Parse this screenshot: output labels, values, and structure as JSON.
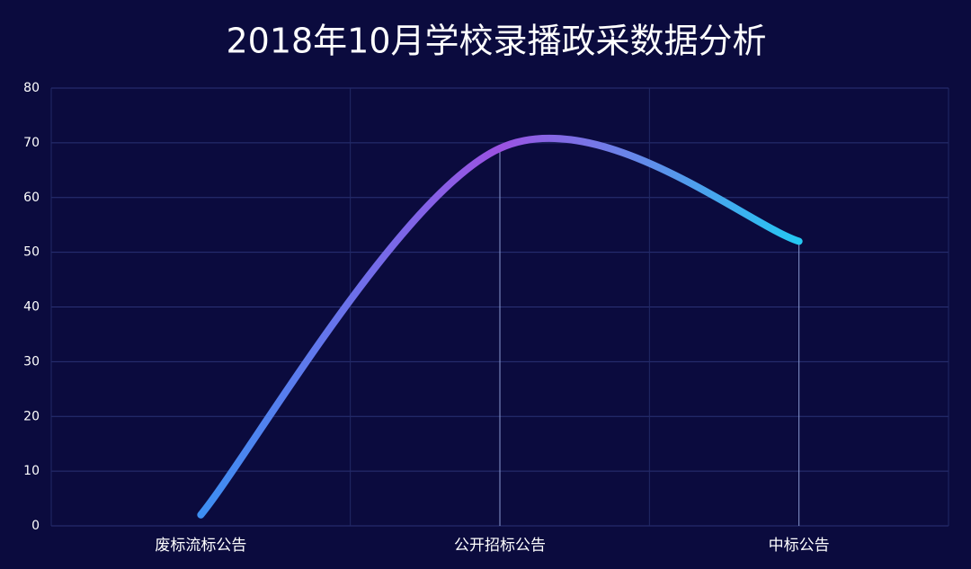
{
  "chart_data": {
    "type": "line",
    "title": "2018年10月学校录播政采数据分析",
    "categories": [
      "废标流标公告",
      "公开招标公告",
      "中标公告"
    ],
    "values": [
      2,
      69,
      52
    ],
    "gradient": [
      "#3d8ff2",
      "#9b52e2",
      "#25c8f2"
    ],
    "ylim": [
      0,
      80
    ],
    "yticks": [
      0,
      10,
      20,
      30,
      40,
      50,
      60,
      70,
      80
    ],
    "grid": true
  }
}
